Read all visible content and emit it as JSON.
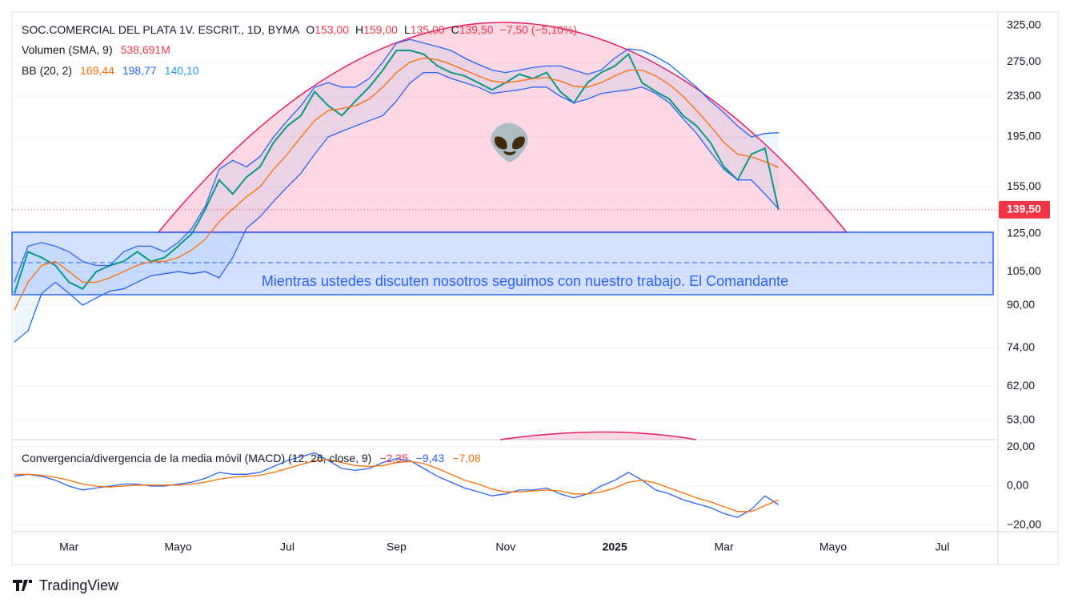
{
  "chart_data": [
    {
      "type": "line",
      "title": "SOC.COMERCIAL DEL PLATA 1V. ESCRIT., 1D, BYMA",
      "ohlc": [
        {
          "label": "O",
          "value": "153,00"
        },
        {
          "label": "H",
          "value": "159,00"
        },
        {
          "label": "L",
          "value": "135,00"
        },
        {
          "label": "C",
          "value": "139,50"
        }
      ],
      "change": "−7,50 (−5,10%)",
      "volume_study": {
        "label": "Volumen (SMA, 9)",
        "value": "538,691M"
      },
      "bb_study": {
        "label": "BB (20, 2)",
        "values": [
          "169,44",
          "198,77",
          "140,10"
        ]
      },
      "annotation": "Mientras ustedes discuten nosotros seguimos con nuestro trabajo. El Comandante",
      "last_price_label": "139,50",
      "log_scale": true,
      "categories": [
        null,
        null,
        null,
        null,
        "Mar",
        null,
        null,
        null,
        null,
        null,
        null,
        null,
        "Mayo",
        null,
        null,
        null,
        null,
        null,
        null,
        null,
        "Jul",
        null,
        null,
        null,
        null,
        null,
        null,
        null,
        "Sep",
        null,
        null,
        null,
        null,
        null,
        null,
        null,
        "Nov",
        null,
        null,
        null,
        null,
        null,
        null,
        null,
        "2025",
        null,
        null,
        null,
        null,
        null,
        null,
        null,
        "Mar",
        null,
        null,
        null,
        null,
        null,
        null,
        null,
        "Mayo",
        null,
        null,
        null,
        null,
        null,
        null,
        null,
        "Jul",
        null,
        null,
        null
      ],
      "series": [
        {
          "color": "#089981",
          "values": [
            95,
            115,
            112,
            108,
            100,
            97,
            105,
            108,
            110,
            115,
            110,
            112,
            118,
            125,
            140,
            160,
            150,
            162,
            170,
            190,
            205,
            215,
            240,
            225,
            215,
            230,
            245,
            265,
            290,
            290,
            285,
            270,
            262,
            258,
            250,
            242,
            250,
            260,
            255,
            262,
            240,
            228,
            250,
            262,
            270,
            285,
            250,
            240,
            232,
            215,
            205,
            190,
            170,
            160,
            180,
            185,
            139.5,
            null,
            null,
            null,
            null,
            null,
            null,
            null,
            null,
            null,
            null,
            null,
            null,
            null,
            null,
            null
          ]
        },
        {
          "color": "#ff6d00",
          "values": [
            88,
            100,
            108,
            110,
            105,
            100,
            100,
            102,
            105,
            108,
            110,
            110,
            112,
            116,
            122,
            132,
            140,
            148,
            155,
            168,
            180,
            195,
            210,
            220,
            222,
            225,
            232,
            245,
            262,
            275,
            280,
            278,
            272,
            265,
            258,
            252,
            250,
            252,
            255,
            256,
            252,
            246,
            245,
            250,
            258,
            265,
            265,
            258,
            248,
            235,
            220,
            205,
            190,
            180,
            178,
            174,
            169.44,
            null,
            null,
            null,
            null,
            null,
            null,
            null,
            null,
            null,
            null,
            null,
            null,
            null,
            null,
            null
          ]
        },
        {
          "color": "#2962ff",
          "values": [
            100,
            118,
            120,
            118,
            115,
            110,
            108,
            108,
            115,
            118,
            118,
            115,
            120,
            128,
            142,
            168,
            175,
            170,
            178,
            195,
            210,
            225,
            245,
            250,
            245,
            245,
            255,
            275,
            300,
            305,
            300,
            295,
            290,
            280,
            272,
            265,
            262,
            265,
            268,
            270,
            270,
            265,
            260,
            265,
            280,
            292,
            290,
            282,
            272,
            258,
            245,
            230,
            218,
            205,
            195,
            198,
            198.77,
            null,
            null,
            null,
            null,
            null,
            null,
            null,
            null,
            null,
            null,
            null,
            null,
            null,
            null,
            null
          ]
        },
        {
          "color": "#2962ff",
          "values": [
            76,
            80,
            95,
            100,
            95,
            90,
            93,
            96,
            97,
            100,
            103,
            104,
            105,
            104,
            105,
            102,
            112,
            128,
            135,
            145,
            155,
            165,
            180,
            195,
            200,
            205,
            210,
            215,
            230,
            250,
            262,
            262,
            255,
            250,
            245,
            238,
            240,
            242,
            245,
            245,
            235,
            228,
            232,
            238,
            240,
            242,
            245,
            238,
            228,
            212,
            198,
            182,
            168,
            160,
            160,
            150,
            140.1,
            null,
            null,
            null,
            null,
            null,
            null,
            null,
            null,
            null,
            null,
            null,
            null,
            null,
            null,
            null
          ]
        }
      ],
      "ylim": [
        48.7,
        346
      ],
      "yticks": [
        {
          "value": 325,
          "label": "325,00"
        },
        {
          "value": 275,
          "label": "275,00"
        },
        {
          "value": 235,
          "label": "235,00"
        },
        {
          "value": 195,
          "label": "195,00"
        },
        {
          "value": 155,
          "label": "155,00"
        },
        {
          "value": 125,
          "label": "125,00"
        },
        {
          "value": 105,
          "label": "105,00"
        },
        {
          "value": 90,
          "label": "90,00"
        },
        {
          "value": 74,
          "label": "74,00"
        },
        {
          "value": 62,
          "label": "62,00"
        },
        {
          "value": 53,
          "label": "53,00"
        }
      ],
      "grid": true
    },
    {
      "type": "line",
      "title": "Convergencia/divergencia de la media móvil (MACD) (12, 26, close, 9)",
      "value_labels": [
        "−2,35",
        "−9,43",
        "−7,08"
      ],
      "series": [
        {
          "color": "#2962ff",
          "values": [
            5,
            6,
            5,
            3,
            0,
            -2,
            -1,
            0,
            1,
            1,
            0,
            0,
            1,
            2,
            4,
            7,
            6,
            6,
            7,
            10,
            13,
            15,
            17,
            13,
            9,
            8,
            9,
            12,
            14,
            13,
            9,
            5,
            2,
            -1,
            -3,
            -5,
            -4,
            -2,
            -2,
            -1,
            -4,
            -6,
            -4,
            0,
            3,
            7,
            3,
            -2,
            -4,
            -7,
            -9,
            -11,
            -14,
            -16,
            -12,
            -5,
            -9.43,
            null,
            null,
            null,
            null,
            null,
            null,
            null,
            null,
            null,
            null,
            null,
            null,
            null,
            null,
            null
          ]
        },
        {
          "color": "#ff6d00",
          "values": [
            6,
            6,
            5.5,
            4.5,
            3,
            1,
            0,
            -0.5,
            0,
            0.5,
            0.5,
            0.5,
            0.5,
            1,
            2,
            3.5,
            4.5,
            5,
            5.5,
            7,
            9,
            11,
            13,
            13.5,
            12,
            10.5,
            10,
            10.5,
            12,
            12.5,
            11.5,
            9,
            6,
            3,
            1,
            -1.5,
            -3,
            -3,
            -2.5,
            -2,
            -2.5,
            -4,
            -4,
            -3,
            -1,
            2,
            3,
            1.5,
            -1,
            -3.5,
            -6,
            -8,
            -10.5,
            -13,
            -13,
            -10,
            -7.08,
            null,
            null,
            null,
            null,
            null,
            null,
            null,
            null,
            null,
            null,
            null,
            null,
            null,
            null,
            null
          ]
        }
      ],
      "ylim": [
        -22.9,
        23.3
      ],
      "yticks": [
        {
          "value": 20,
          "label": "20,00"
        },
        {
          "value": 0,
          "label": "0,00"
        },
        {
          "value": -20,
          "label": "−20,00"
        }
      ],
      "grid": true
    }
  ],
  "footer": {
    "brand": "TradingView"
  }
}
